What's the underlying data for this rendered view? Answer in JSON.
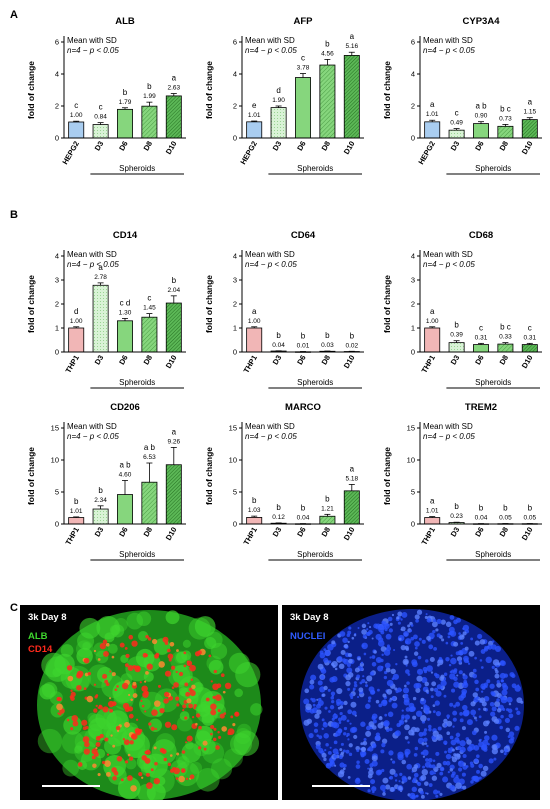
{
  "panel_labels": {
    "a": "A",
    "b": "B",
    "c": "C"
  },
  "group_label": "Spheroids",
  "ylabel": "fold of change",
  "note_line1": "Mean with SD",
  "note_line2": "n=4 − p < 0.05",
  "colors": {
    "hepg2": "#a9cdf0",
    "thp1": "#f1b6b6",
    "spheroid_light": "#d9f3d6",
    "spheroid_mid": "#86d67d",
    "spheroid_dark": "#3d9d3a",
    "alb": "#3ed52e",
    "cd14": "#ff2a1c",
    "nuclei": "#1f4dff"
  },
  "chart_data": [
    {
      "type": "bar",
      "title": "ALB",
      "categories": [
        "HEPG2",
        "D3",
        "D6",
        "D8",
        "D10"
      ],
      "values": [
        1.0,
        0.84,
        1.79,
        1.99,
        2.63
      ],
      "errors": [
        0.05,
        0.12,
        0.1,
        0.25,
        0.15
      ],
      "value_labels": [
        "1.00",
        "0.84",
        "1.79",
        "1.99",
        "2.63"
      ],
      "letters": [
        "c",
        "c",
        "b",
        "b",
        "a"
      ],
      "ylim": [
        0,
        6
      ],
      "yticks": [
        0,
        2,
        4,
        6
      ],
      "ref": "hepg2"
    },
    {
      "type": "bar",
      "title": "AFP",
      "categories": [
        "HEPG2",
        "D3",
        "D6",
        "D8",
        "D10"
      ],
      "values": [
        1.01,
        1.9,
        3.78,
        4.56,
        5.16
      ],
      "errors": [
        0.05,
        0.1,
        0.25,
        0.35,
        0.2
      ],
      "value_labels": [
        "1.01",
        "1.90",
        "3.78",
        "4.56",
        "5.16"
      ],
      "letters": [
        "e",
        "d",
        "c",
        "b",
        "a"
      ],
      "ylim": [
        0,
        6
      ],
      "yticks": [
        0,
        2,
        4,
        6
      ],
      "ref": "hepg2"
    },
    {
      "type": "bar",
      "title": "CYP3A4",
      "categories": [
        "HEPG2",
        "D3",
        "D6",
        "D8",
        "D10"
      ],
      "values": [
        1.01,
        0.49,
        0.9,
        0.73,
        1.15
      ],
      "errors": [
        0.1,
        0.1,
        0.12,
        0.12,
        0.12
      ],
      "value_labels": [
        "1.01",
        "0.49",
        "0.90",
        "0.73",
        "1.15"
      ],
      "letters": [
        "a",
        "c",
        "a b",
        "b c",
        "a"
      ],
      "ylim": [
        0,
        6
      ],
      "yticks": [
        0,
        2,
        4,
        6
      ],
      "ref": "hepg2"
    },
    {
      "type": "bar",
      "title": "CD14",
      "categories": [
        "THP1",
        "D3",
        "D6",
        "D8",
        "D10"
      ],
      "values": [
        1.0,
        2.78,
        1.3,
        1.45,
        2.04
      ],
      "errors": [
        0.05,
        0.1,
        0.1,
        0.15,
        0.3
      ],
      "value_labels": [
        "1.00",
        "2.78",
        "1.30",
        "1.45",
        "2.04"
      ],
      "letters": [
        "d",
        "a",
        "c d",
        "c",
        "b"
      ],
      "ylim": [
        0,
        4
      ],
      "yticks": [
        0,
        1,
        2,
        3,
        4
      ],
      "ref": "thp1"
    },
    {
      "type": "bar",
      "title": "CD64",
      "categories": [
        "THP1",
        "D3",
        "D6",
        "D8",
        "D10"
      ],
      "values": [
        1.0,
        0.04,
        0.01,
        0.03,
        0.02
      ],
      "errors": [
        0.05,
        0.01,
        0.01,
        0.01,
        0.01
      ],
      "value_labels": [
        "1.00",
        "0.04",
        "0.01",
        "0.03",
        "0.02"
      ],
      "letters": [
        "a",
        "b",
        "b",
        "b",
        "b"
      ],
      "ylim": [
        0,
        4
      ],
      "yticks": [
        0,
        1,
        2,
        3,
        4
      ],
      "ref": "thp1"
    },
    {
      "type": "bar",
      "title": "CD68",
      "categories": [
        "THP1",
        "D3",
        "D6",
        "D8",
        "D10"
      ],
      "values": [
        1.0,
        0.39,
        0.31,
        0.33,
        0.31
      ],
      "errors": [
        0.05,
        0.08,
        0.05,
        0.06,
        0.05
      ],
      "value_labels": [
        "1.00",
        "0.39",
        "0.31",
        "0.33",
        "0.31"
      ],
      "letters": [
        "a",
        "b",
        "c",
        "b c",
        "c"
      ],
      "ylim": [
        0,
        4
      ],
      "yticks": [
        0,
        1,
        2,
        3,
        4
      ],
      "ref": "thp1"
    },
    {
      "type": "bar",
      "title": "CD206",
      "categories": [
        "THP1",
        "D3",
        "D6",
        "D8",
        "D10"
      ],
      "values": [
        1.01,
        2.34,
        4.6,
        6.53,
        9.26
      ],
      "errors": [
        0.1,
        0.5,
        2.2,
        3.0,
        2.7
      ],
      "value_labels": [
        "1.01",
        "2.34",
        "4.60",
        "6.53",
        "9.26"
      ],
      "letters": [
        "b",
        "b",
        "a b",
        "a b",
        "a"
      ],
      "ylim": [
        0,
        15
      ],
      "yticks": [
        0,
        5,
        10,
        15
      ],
      "ref": "thp1"
    },
    {
      "type": "bar",
      "title": "MARCO",
      "categories": [
        "THP1",
        "D3",
        "D6",
        "D8",
        "D10"
      ],
      "values": [
        1.03,
        0.12,
        0.04,
        1.21,
        5.18
      ],
      "errors": [
        0.2,
        0.05,
        0.02,
        0.3,
        1.0
      ],
      "value_labels": [
        "1.03",
        "0.12",
        "0.04",
        "1.21",
        "5.18"
      ],
      "letters": [
        "b",
        "b",
        "b",
        "b",
        "a"
      ],
      "ylim": [
        0,
        15
      ],
      "yticks": [
        0,
        5,
        10,
        15
      ],
      "ref": "thp1"
    },
    {
      "type": "bar",
      "title": "TREM2",
      "categories": [
        "THP1",
        "D3",
        "D6",
        "D8",
        "D10"
      ],
      "values": [
        1.01,
        0.23,
        0.04,
        0.05,
        0.05
      ],
      "errors": [
        0.15,
        0.05,
        0.02,
        0.02,
        0.02
      ],
      "value_labels": [
        "1.01",
        "0.23",
        "0.04",
        "0.05",
        "0.05"
      ],
      "letters": [
        "a",
        "b",
        "b",
        "b",
        "b"
      ],
      "ylim": [
        0,
        15
      ],
      "yticks": [
        0,
        5,
        10,
        15
      ],
      "ref": "thp1"
    }
  ],
  "micrographs": [
    {
      "caption": "3k Day 8",
      "channels": [
        "ALB",
        "CD14"
      ]
    },
    {
      "caption": "3k Day 8",
      "channels": [
        "NUCLEI"
      ]
    }
  ]
}
